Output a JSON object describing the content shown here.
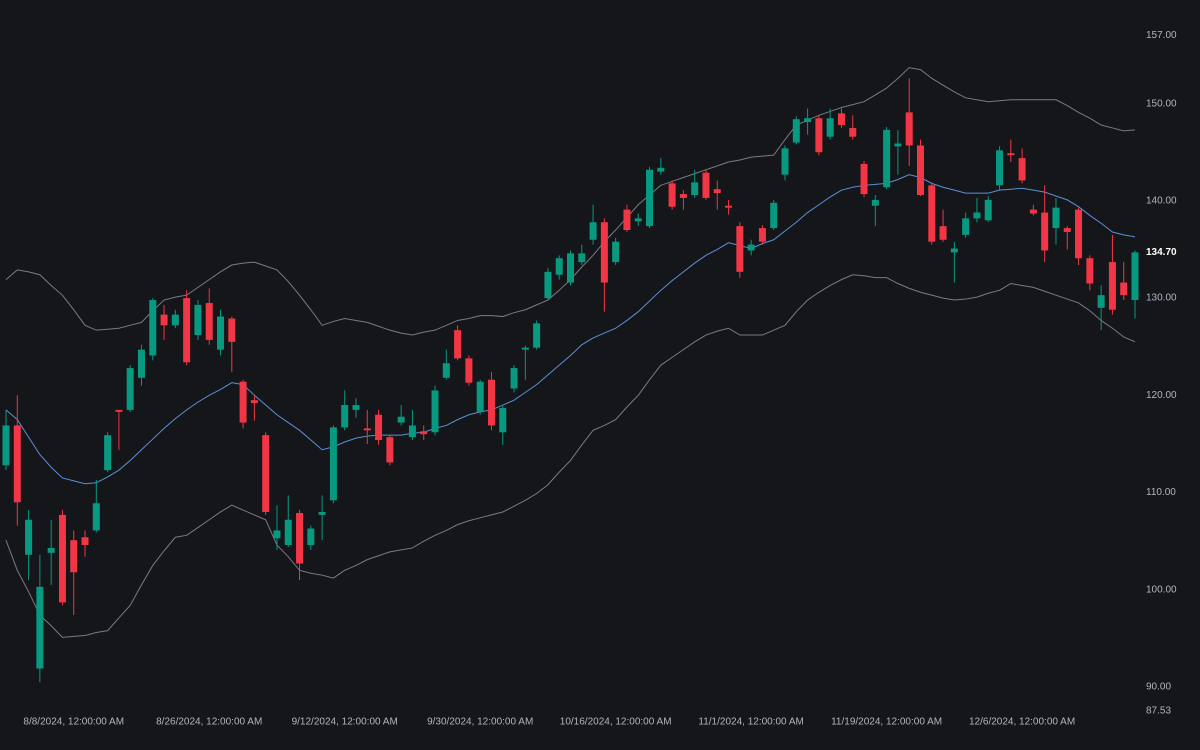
{
  "chart_data": {
    "type": "candlestick",
    "categories": [
      null,
      null,
      null,
      null,
      null,
      null,
      "8/8/2024, 12:00:00 AM",
      null,
      null,
      null,
      null,
      null,
      null,
      null,
      null,
      null,
      null,
      null,
      "8/26/2024, 12:00:00 AM",
      null,
      null,
      null,
      null,
      null,
      null,
      null,
      null,
      null,
      null,
      null,
      "9/12/2024, 12:00:00 AM",
      null,
      null,
      null,
      null,
      null,
      null,
      null,
      null,
      null,
      null,
      null,
      "9/30/2024, 12:00:00 AM",
      null,
      null,
      null,
      null,
      null,
      null,
      null,
      null,
      null,
      null,
      null,
      "10/16/2024, 12:00:00 AM",
      null,
      null,
      null,
      null,
      null,
      null,
      null,
      null,
      null,
      null,
      null,
      "11/1/2024, 12:00:00 AM",
      null,
      null,
      null,
      null,
      null,
      null,
      null,
      null,
      null,
      null,
      null,
      "11/19/2024, 12:00:00 AM",
      null,
      null,
      null,
      null,
      null,
      null,
      null,
      null,
      null,
      null,
      null,
      "12/6/2024, 12:00:00 AM",
      null,
      null,
      null,
      null,
      null,
      null,
      null,
      null,
      null,
      null
    ],
    "open": [
      112.8,
      116.9,
      103.6,
      91.9,
      103.8,
      107.7,
      105.1,
      105.4,
      106.1,
      112.3,
      118.5,
      118.5,
      121.8,
      124.1,
      128.3,
      127.2,
      130.0,
      126.2,
      129.5,
      124.7,
      127.9,
      121.4,
      119.5,
      115.9,
      105.3,
      104.6,
      107.9,
      104.6,
      107.7,
      109.2,
      116.7,
      118.5,
      116.6,
      118.0,
      115.7,
      117.2,
      115.7,
      116.3,
      116.2,
      121.8,
      126.7,
      123.8,
      118.3,
      121.6,
      116.2,
      120.7,
      124.7,
      124.9,
      130.0,
      132.4,
      131.6,
      133.7,
      136.0,
      137.8,
      133.7,
      139.1,
      137.9,
      137.4,
      143.0,
      141.8,
      140.7,
      140.6,
      142.9,
      141.2,
      139.5,
      137.4,
      134.9,
      137.2,
      137.2,
      142.7,
      146.0,
      148.1,
      148.5,
      146.6,
      149.0,
      147.5,
      143.8,
      139.5,
      141.4,
      145.6,
      149.1,
      145.7,
      141.6,
      137.4,
      134.7,
      136.5,
      138.2,
      138.0,
      141.6,
      144.9,
      144.4,
      139.1,
      138.8,
      137.2,
      137.2,
      139.1,
      134.1,
      129.0,
      133.7,
      131.6,
      129.8
    ],
    "high": [
      118.5,
      120.0,
      108.2,
      103.6,
      107.2,
      108.2,
      106.1,
      106.1,
      111.3,
      116.2,
      118.5,
      123.1,
      125.2,
      130.0,
      129.3,
      128.8,
      130.8,
      129.8,
      131.0,
      128.8,
      128.1,
      121.6,
      120.0,
      116.2,
      108.7,
      109.7,
      108.2,
      106.6,
      109.7,
      116.9,
      120.5,
      119.7,
      118.5,
      118.5,
      115.9,
      119.0,
      118.5,
      116.9,
      121.0,
      124.7,
      127.2,
      124.1,
      121.6,
      122.4,
      119.0,
      123.1,
      125.1,
      127.7,
      133.1,
      134.4,
      134.9,
      135.5,
      139.6,
      138.2,
      136.2,
      139.6,
      138.7,
      143.5,
      144.4,
      142.1,
      141.1,
      143.2,
      143.2,
      142.1,
      140.1,
      137.8,
      136.0,
      137.5,
      140.1,
      145.7,
      148.7,
      149.5,
      148.8,
      149.5,
      149.5,
      148.8,
      144.1,
      140.6,
      147.6,
      147.3,
      152.6,
      146.3,
      141.9,
      139.1,
      135.8,
      138.8,
      140.3,
      140.5,
      145.6,
      146.3,
      145.4,
      139.6,
      141.6,
      140.3,
      137.4,
      139.3,
      134.4,
      131.3,
      136.5,
      133.7,
      134.9
    ],
    "low": [
      112.3,
      106.6,
      101.0,
      90.5,
      100.5,
      98.4,
      97.4,
      103.4,
      105.9,
      112.1,
      114.4,
      118.3,
      121.0,
      123.6,
      125.7,
      126.9,
      123.1,
      125.7,
      125.2,
      124.1,
      122.4,
      116.6,
      117.4,
      107.7,
      104.1,
      104.4,
      101.0,
      104.1,
      105.1,
      108.9,
      116.4,
      117.7,
      115.0,
      114.9,
      112.8,
      116.9,
      115.4,
      115.4,
      115.9,
      121.6,
      123.6,
      121.0,
      118.0,
      116.4,
      114.9,
      120.3,
      121.6,
      124.7,
      129.8,
      131.9,
      131.3,
      133.4,
      135.5,
      128.6,
      133.4,
      136.8,
      137.4,
      137.2,
      142.7,
      139.1,
      139.1,
      140.3,
      140.1,
      139.1,
      138.6,
      132.1,
      134.4,
      135.5,
      137.0,
      142.1,
      145.8,
      146.8,
      144.7,
      146.3,
      147.5,
      146.3,
      140.4,
      137.4,
      141.2,
      142.7,
      143.6,
      140.5,
      135.5,
      135.8,
      131.6,
      136.2,
      137.8,
      137.8,
      141.1,
      144.0,
      141.8,
      138.5,
      133.7,
      135.5,
      135.0,
      133.4,
      130.8,
      126.7,
      128.3,
      129.8,
      127.9
    ],
    "close": [
      116.9,
      109.0,
      107.2,
      100.3,
      104.3,
      98.7,
      101.8,
      104.6,
      108.9,
      115.9,
      118.3,
      122.8,
      124.7,
      129.8,
      127.2,
      128.3,
      123.4,
      129.3,
      125.7,
      128.1,
      125.5,
      117.2,
      119.2,
      108.0,
      106.1,
      107.2,
      102.7,
      106.3,
      108.0,
      116.7,
      119.0,
      119.0,
      116.4,
      115.4,
      113.1,
      117.8,
      116.9,
      116.0,
      120.5,
      123.3,
      123.8,
      121.3,
      121.4,
      116.9,
      118.7,
      122.8,
      124.9,
      127.4,
      132.7,
      134.1,
      134.6,
      134.6,
      137.8,
      131.6,
      135.8,
      137.0,
      138.2,
      143.2,
      143.4,
      139.4,
      140.3,
      141.9,
      140.3,
      140.8,
      139.3,
      132.7,
      135.5,
      135.8,
      139.8,
      145.4,
      148.4,
      148.5,
      145.0,
      148.5,
      147.8,
      146.6,
      140.7,
      140.1,
      147.3,
      145.9,
      145.7,
      140.6,
      135.8,
      136.0,
      135.1,
      138.2,
      138.8,
      140.1,
      145.2,
      144.7,
      142.1,
      138.7,
      134.9,
      139.3,
      136.8,
      134.1,
      131.5,
      130.3,
      128.8,
      130.3,
      134.7
    ],
    "up_color": "#089981",
    "down_color": "#f23645",
    "overlays": [
      {
        "color": "#787b86",
        "values": [
          131.9,
          132.9,
          132.7,
          132.4,
          131.3,
          130.3,
          128.8,
          127.2,
          126.7,
          126.8,
          126.9,
          127.2,
          127.5,
          128.7,
          129.8,
          130.1,
          130.3,
          131.1,
          131.9,
          132.7,
          133.4,
          133.6,
          133.7,
          133.3,
          132.9,
          131.7,
          130.3,
          128.8,
          127.2,
          127.6,
          127.9,
          127.7,
          127.5,
          127.1,
          126.7,
          126.4,
          126.2,
          126.5,
          126.7,
          127.2,
          127.7,
          127.9,
          128.2,
          128.2,
          128.1,
          128.5,
          128.8,
          129.3,
          129.8,
          130.8,
          131.9,
          133.2,
          134.4,
          135.8,
          137.0,
          138.3,
          139.6,
          140.6,
          141.6,
          142.0,
          142.4,
          142.8,
          143.2,
          143.6,
          144.0,
          144.2,
          144.5,
          144.6,
          144.7,
          146.3,
          147.8,
          148.3,
          148.8,
          149.2,
          149.6,
          149.9,
          150.2,
          150.9,
          151.6,
          152.6,
          153.7,
          153.5,
          152.6,
          151.9,
          151.2,
          150.6,
          150.4,
          150.2,
          150.3,
          150.4,
          150.4,
          150.4,
          150.4,
          150.4,
          149.8,
          149.1,
          148.5,
          147.8,
          147.5,
          147.2,
          147.3
        ]
      },
      {
        "color": "#5b8fd6",
        "values": [
          118.5,
          117.5,
          115.7,
          113.9,
          112.6,
          111.5,
          111.2,
          110.9,
          111.0,
          111.6,
          112.3,
          113.3,
          114.4,
          115.5,
          116.6,
          117.6,
          118.5,
          119.3,
          120.0,
          120.6,
          121.3,
          121.1,
          120.0,
          119.0,
          118.0,
          117.2,
          116.4,
          115.4,
          114.4,
          114.7,
          115.2,
          115.6,
          115.8,
          115.9,
          115.9,
          115.9,
          116.1,
          116.2,
          116.6,
          116.9,
          117.5,
          118.0,
          118.3,
          118.5,
          119.0,
          119.5,
          120.3,
          121.1,
          122.1,
          123.1,
          124.1,
          125.2,
          125.9,
          126.4,
          126.9,
          127.7,
          128.6,
          129.7,
          130.8,
          131.8,
          132.7,
          133.6,
          134.4,
          135.0,
          135.7,
          135.4,
          135.1,
          135.6,
          136.0,
          136.9,
          137.8,
          138.8,
          139.6,
          140.4,
          141.1,
          141.4,
          141.6,
          141.7,
          141.8,
          142.2,
          142.7,
          142.4,
          141.8,
          141.4,
          141.1,
          140.8,
          140.8,
          140.8,
          141.1,
          141.2,
          141.3,
          141.1,
          140.9,
          140.5,
          140.1,
          139.4,
          138.5,
          137.7,
          136.8,
          136.5,
          136.3
        ]
      },
      {
        "color": "#787b86",
        "values": [
          105.1,
          102.0,
          99.8,
          97.4,
          96.3,
          95.1,
          95.2,
          95.3,
          95.6,
          95.8,
          97.1,
          98.4,
          100.5,
          102.5,
          104.0,
          105.4,
          105.6,
          106.4,
          107.2,
          108.0,
          108.7,
          108.2,
          107.7,
          107.2,
          104.6,
          103.4,
          102.0,
          101.7,
          101.5,
          101.2,
          102.0,
          102.5,
          103.1,
          103.5,
          103.9,
          104.1,
          104.3,
          105.0,
          105.6,
          106.1,
          106.7,
          107.1,
          107.4,
          107.7,
          108.0,
          108.6,
          109.2,
          109.9,
          110.8,
          112.1,
          113.3,
          114.9,
          116.4,
          116.9,
          117.5,
          118.8,
          120.0,
          121.6,
          123.1,
          123.9,
          124.7,
          125.5,
          126.2,
          126.6,
          126.9,
          126.2,
          126.2,
          126.2,
          126.7,
          127.2,
          128.6,
          129.8,
          130.6,
          131.3,
          131.9,
          132.4,
          132.3,
          132.1,
          132.1,
          131.5,
          131.0,
          130.6,
          130.3,
          130.0,
          129.8,
          129.9,
          130.1,
          130.5,
          130.8,
          131.5,
          131.3,
          131.1,
          130.7,
          130.3,
          129.9,
          129.5,
          128.7,
          127.7,
          126.9,
          126.0,
          125.5
        ]
      }
    ],
    "ylim": [
      87.53,
      160.66
    ],
    "yticks": [
      {
        "value": 157,
        "label": "157.00"
      },
      {
        "value": 150,
        "label": "150.00"
      },
      {
        "value": 140,
        "label": "140.00"
      },
      {
        "value": 130,
        "label": "130.00"
      },
      {
        "value": 120,
        "label": "120.00"
      },
      {
        "value": 110,
        "label": "110.00"
      },
      {
        "value": 100,
        "label": "100.00"
      },
      {
        "value": 90,
        "label": "90.00"
      },
      {
        "value": 87.53,
        "label": "87.53"
      }
    ],
    "last_price": {
      "value": 134.7,
      "label": "134.70"
    }
  }
}
